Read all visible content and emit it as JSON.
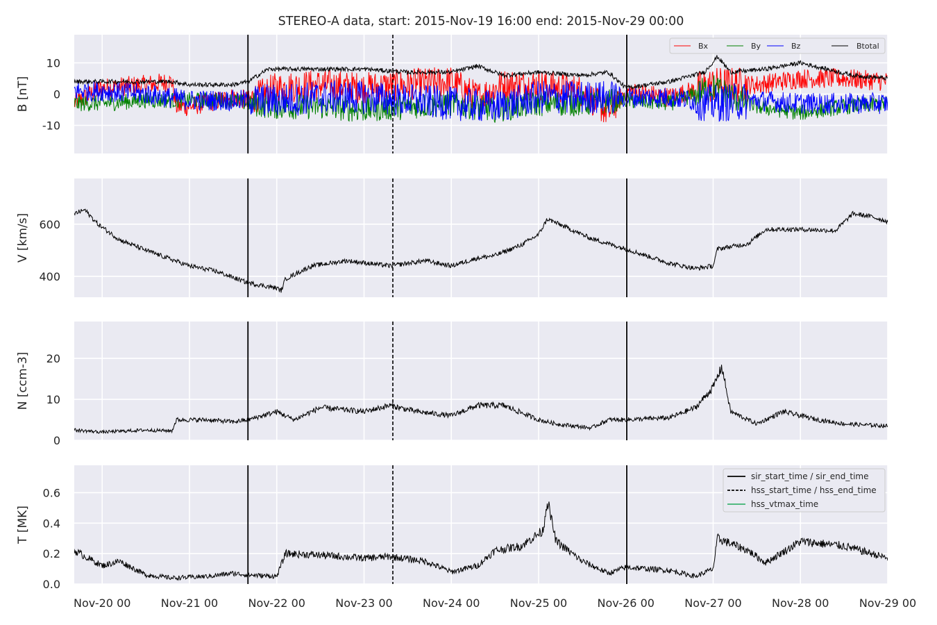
{
  "chart_data": {
    "title": "STEREO-A data, start: 2015-Nov-19 16:00  end: 2015-Nov-29 00:00",
    "type": "line",
    "x_ticks": [
      "Nov-20 00",
      "Nov-21 00",
      "Nov-22 00",
      "Nov-23 00",
      "Nov-24 00",
      "Nov-25 00",
      "Nov-26 00",
      "Nov-27 00",
      "Nov-28 00",
      "Nov-29 00"
    ],
    "xlim_days": [
      -0.32,
      9.0
    ],
    "grid": true,
    "event_lines": {
      "sir_start_time": 1.67,
      "sir_end_time": 6.01,
      "hss_start_time": 3.33
    },
    "panels": [
      {
        "ylabel": "B [nT]",
        "ylim": [
          -19,
          19
        ],
        "yticks": [
          -10,
          0,
          10
        ],
        "legend": {
          "placement": "upper-right",
          "entries": [
            "Bx",
            "By",
            "Bz",
            "Btotal"
          ]
        },
        "series": [
          {
            "name": "Bx",
            "color": "#ff0000",
            "points": [
              [
                -0.32,
                -3
              ],
              [
                0,
                2
              ],
              [
                0.5,
                3
              ],
              [
                0.8,
                4
              ],
              [
                0.85,
                -4
              ],
              [
                1,
                -4
              ],
              [
                1.5,
                -1
              ],
              [
                1.67,
                -2
              ],
              [
                2,
                2
              ],
              [
                2.5,
                3
              ],
              [
                3,
                2
              ],
              [
                3.5,
                3
              ],
              [
                4,
                4
              ],
              [
                4.3,
                -1
              ],
              [
                4.6,
                3
              ],
              [
                5,
                3
              ],
              [
                5.5,
                1
              ],
              [
                5.8,
                -6
              ],
              [
                6,
                1
              ],
              [
                6.5,
                -1
              ],
              [
                7,
                3
              ],
              [
                7.5,
                3
              ],
              [
                8,
                5
              ],
              [
                8.5,
                5
              ],
              [
                9,
                4
              ]
            ]
          },
          {
            "name": "By",
            "color": "#008000",
            "points": [
              [
                -0.32,
                -3
              ],
              [
                0,
                -3
              ],
              [
                0.5,
                -2
              ],
              [
                1,
                -2
              ],
              [
                1.5,
                -2
              ],
              [
                1.67,
                -3
              ],
              [
                2,
                -4
              ],
              [
                2.5,
                -4
              ],
              [
                3,
                -5
              ],
              [
                3.5,
                -4
              ],
              [
                4,
                -3
              ],
              [
                4.5,
                -5
              ],
              [
                5,
                -3
              ],
              [
                5.5,
                -3
              ],
              [
                6,
                -2
              ],
              [
                6.5,
                -3
              ],
              [
                7,
                2
              ],
              [
                7.5,
                -4
              ],
              [
                8,
                -6
              ],
              [
                8.5,
                -4
              ],
              [
                9,
                -3
              ]
            ]
          },
          {
            "name": "Bz",
            "color": "#0000ff",
            "points": [
              [
                -0.32,
                1
              ],
              [
                0,
                1
              ],
              [
                0.5,
                0
              ],
              [
                1,
                -2
              ],
              [
                1.5,
                -2
              ],
              [
                1.67,
                -2
              ],
              [
                2,
                -2
              ],
              [
                2.5,
                -1
              ],
              [
                3,
                -1
              ],
              [
                3.5,
                -2
              ],
              [
                4,
                -3
              ],
              [
                4.5,
                -4
              ],
              [
                5,
                -1
              ],
              [
                5.5,
                -1
              ],
              [
                6,
                -1
              ],
              [
                6.5,
                -1
              ],
              [
                7,
                -3
              ],
              [
                7.5,
                -2
              ],
              [
                8,
                -3
              ],
              [
                8.5,
                -3
              ],
              [
                9,
                -3
              ]
            ]
          },
          {
            "name": "Btotal",
            "color": "#000000",
            "points": [
              [
                -0.32,
                4
              ],
              [
                0,
                4
              ],
              [
                0.5,
                4
              ],
              [
                0.8,
                4
              ],
              [
                1,
                3
              ],
              [
                1.5,
                3
              ],
              [
                1.67,
                4
              ],
              [
                1.9,
                8
              ],
              [
                2.2,
                8
              ],
              [
                2.5,
                8
              ],
              [
                3,
                8
              ],
              [
                3.5,
                7
              ],
              [
                4,
                7
              ],
              [
                4.3,
                9
              ],
              [
                4.6,
                6
              ],
              [
                5,
                7
              ],
              [
                5.5,
                6
              ],
              [
                5.8,
                7
              ],
              [
                6,
                2
              ],
              [
                6.5,
                4
              ],
              [
                6.9,
                7
              ],
              [
                7.05,
                12
              ],
              [
                7.2,
                7
              ],
              [
                7.6,
                8
              ],
              [
                8,
                10
              ],
              [
                8.3,
                8
              ],
              [
                8.6,
                6
              ],
              [
                9,
                5
              ]
            ]
          }
        ]
      },
      {
        "ylabel": "V [km/s]",
        "ylim": [
          320,
          775
        ],
        "yticks": [
          400,
          600
        ],
        "series": [
          {
            "name": "V",
            "color": "#000000",
            "points": [
              [
                -0.32,
                640
              ],
              [
                -0.2,
                655
              ],
              [
                -0.05,
                600
              ],
              [
                0.2,
                540
              ],
              [
                0.5,
                500
              ],
              [
                1,
                440
              ],
              [
                1.3,
                420
              ],
              [
                1.67,
                375
              ],
              [
                2,
                355
              ],
              [
                2.05,
                345
              ],
              [
                2.1,
                390
              ],
              [
                2.4,
                440
              ],
              [
                2.8,
                460
              ],
              [
                3.3,
                440
              ],
              [
                3.7,
                460
              ],
              [
                4,
                440
              ],
              [
                4.3,
                470
              ],
              [
                4.5,
                480
              ],
              [
                4.8,
                520
              ],
              [
                5,
                560
              ],
              [
                5.1,
                620
              ],
              [
                5.3,
                590
              ],
              [
                5.6,
                545
              ],
              [
                6,
                505
              ],
              [
                6.5,
                450
              ],
              [
                6.8,
                430
              ],
              [
                7,
                440
              ],
              [
                7.05,
                505
              ],
              [
                7.4,
                525
              ],
              [
                7.6,
                580
              ],
              [
                8,
                580
              ],
              [
                8.4,
                575
              ],
              [
                8.6,
                640
              ],
              [
                8.8,
                630
              ],
              [
                9,
                610
              ]
            ]
          }
        ]
      },
      {
        "ylabel": "N [ccm-3]",
        "ylim": [
          0,
          29
        ],
        "yticks": [
          0,
          10,
          20
        ],
        "series": [
          {
            "name": "N",
            "color": "#000000",
            "points": [
              [
                -0.32,
                2.5
              ],
              [
                0,
                2
              ],
              [
                0.5,
                2.5
              ],
              [
                0.8,
                2.3
              ],
              [
                0.85,
                5
              ],
              [
                1.2,
                5
              ],
              [
                1.5,
                4.5
              ],
              [
                1.67,
                5
              ],
              [
                2,
                7
              ],
              [
                2.2,
                5
              ],
              [
                2.5,
                8
              ],
              [
                3,
                7
              ],
              [
                3.3,
                8.5
              ],
              [
                3.6,
                7
              ],
              [
                4,
                6
              ],
              [
                4.3,
                8.5
              ],
              [
                4.6,
                8.5
              ],
              [
                5,
                5
              ],
              [
                5.2,
                4
              ],
              [
                5.6,
                3
              ],
              [
                5.8,
                5
              ],
              [
                6,
                5
              ],
              [
                6.5,
                5.5
              ],
              [
                6.8,
                8
              ],
              [
                7,
                13
              ],
              [
                7.1,
                18
              ],
              [
                7.2,
                7
              ],
              [
                7.5,
                4
              ],
              [
                7.8,
                7
              ],
              [
                8.2,
                5
              ],
              [
                8.5,
                4
              ],
              [
                9,
                3.5
              ]
            ]
          }
        ]
      },
      {
        "ylabel": "T [MK]",
        "ylim": [
          0,
          0.78
        ],
        "yticks": [
          0.0,
          0.2,
          0.4,
          0.6
        ],
        "legend": {
          "placement": "upper-right",
          "entries": [
            "sir_start_time / sir_end_time",
            "hss_start_time / hss_end_time",
            "hss_vtmax_time"
          ]
        },
        "series": [
          {
            "name": "T",
            "color": "#000000",
            "points": [
              [
                -0.32,
                0.22
              ],
              [
                0,
                0.12
              ],
              [
                0.2,
                0.15
              ],
              [
                0.5,
                0.06
              ],
              [
                0.8,
                0.04
              ],
              [
                1.2,
                0.05
              ],
              [
                1.5,
                0.07
              ],
              [
                1.67,
                0.06
              ],
              [
                2,
                0.05
              ],
              [
                2.1,
                0.2
              ],
              [
                2.5,
                0.19
              ],
              [
                3,
                0.17
              ],
              [
                3.3,
                0.18
              ],
              [
                3.7,
                0.15
              ],
              [
                4,
                0.08
              ],
              [
                4.3,
                0.12
              ],
              [
                4.5,
                0.22
              ],
              [
                4.8,
                0.25
              ],
              [
                5.05,
                0.35
              ],
              [
                5.1,
                0.55
              ],
              [
                5.2,
                0.28
              ],
              [
                5.5,
                0.15
              ],
              [
                5.8,
                0.07
              ],
              [
                6,
                0.11
              ],
              [
                6.5,
                0.09
              ],
              [
                6.8,
                0.05
              ],
              [
                7,
                0.1
              ],
              [
                7.05,
                0.3
              ],
              [
                7.4,
                0.22
              ],
              [
                7.6,
                0.14
              ],
              [
                8,
                0.28
              ],
              [
                8.5,
                0.25
              ],
              [
                9,
                0.17
              ]
            ]
          }
        ]
      }
    ]
  }
}
